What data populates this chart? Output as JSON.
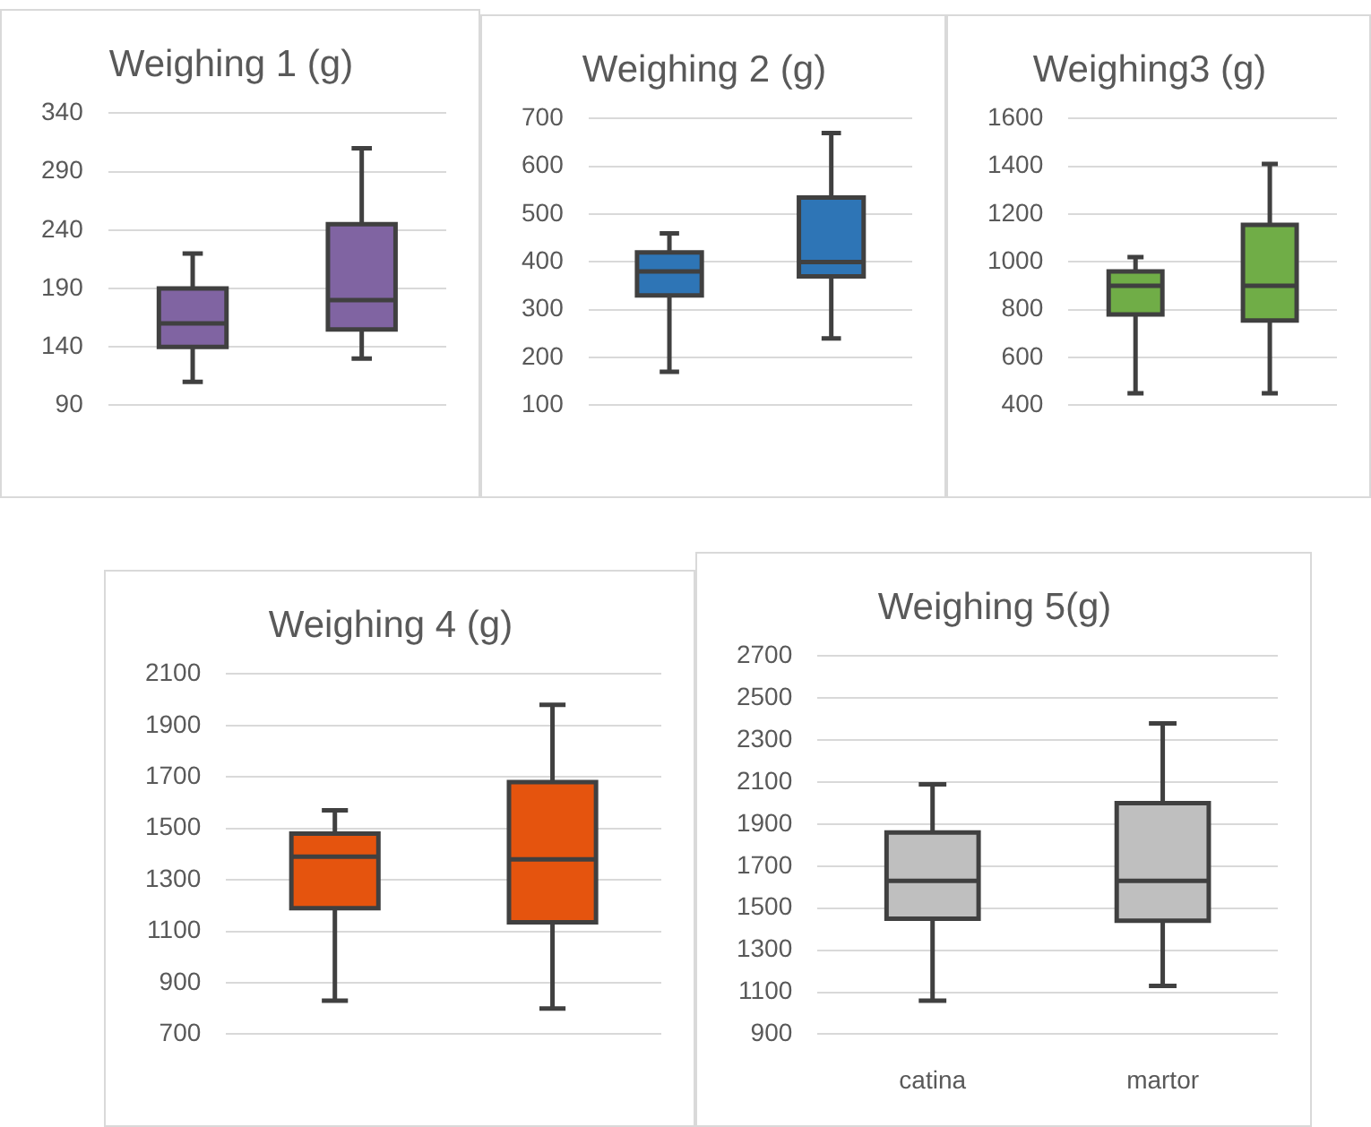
{
  "chart_data": [
    {
      "type": "box",
      "title": "Weighing 1 (g)",
      "categories": [
        null,
        null
      ],
      "series": [
        {
          "color": "#8064a2",
          "boxes": [
            {
              "low": 110,
              "q1": 140,
              "median": 160,
              "q3": 190,
              "high": 220
            },
            {
              "low": 130,
              "q1": 155,
              "median": 180,
              "q3": 245,
              "high": 310
            }
          ]
        }
      ],
      "ylim": [
        90,
        340
      ],
      "yticks": [
        90,
        140,
        190,
        240,
        290,
        340
      ],
      "grid": "y"
    },
    {
      "type": "box",
      "title": "Weighing 2 (g)",
      "categories": [
        null,
        null
      ],
      "series": [
        {
          "color": "#2e75b6",
          "boxes": [
            {
              "low": 170,
              "q1": 330,
              "median": 380,
              "q3": 420,
              "high": 460
            },
            {
              "low": 240,
              "q1": 370,
              "median": 400,
              "q3": 535,
              "high": 670
            }
          ]
        }
      ],
      "ylim": [
        100,
        700
      ],
      "yticks": [
        100,
        200,
        300,
        400,
        500,
        600,
        700
      ],
      "grid": "y"
    },
    {
      "type": "box",
      "title": "Weighing3 (g)",
      "categories": [
        null,
        null
      ],
      "series": [
        {
          "color": "#70ad47",
          "boxes": [
            {
              "low": 450,
              "q1": 780,
              "median": 900,
              "q3": 960,
              "high": 1020
            },
            {
              "low": 450,
              "q1": 755,
              "median": 900,
              "q3": 1155,
              "high": 1410
            }
          ]
        }
      ],
      "ylim": [
        400,
        1600
      ],
      "yticks": [
        400,
        600,
        800,
        1000,
        1200,
        1400,
        1600
      ],
      "grid": "y"
    },
    {
      "type": "box",
      "title": "Weighing 4 (g)",
      "categories": [
        null,
        null
      ],
      "series": [
        {
          "color": "#e5540e",
          "boxes": [
            {
              "low": 830,
              "q1": 1190,
              "median": 1390,
              "q3": 1480,
              "high": 1570
            },
            {
              "low": 800,
              "q1": 1135,
              "median": 1380,
              "q3": 1680,
              "high": 1980
            }
          ]
        }
      ],
      "ylim": [
        700,
        2100
      ],
      "yticks": [
        700,
        900,
        1100,
        1300,
        1500,
        1700,
        1900,
        2100
      ],
      "grid": "y"
    },
    {
      "type": "box",
      "title": "Weighing 5(g)",
      "categories": [
        "catina",
        "martor"
      ],
      "series": [
        {
          "color": "#bfbfbf",
          "boxes": [
            {
              "low": 1060,
              "q1": 1450,
              "median": 1630,
              "q3": 1860,
              "high": 2090
            },
            {
              "low": 1130,
              "q1": 1440,
              "median": 1630,
              "q3": 2000,
              "high": 2380
            }
          ]
        }
      ],
      "ylim": [
        900,
        2700
      ],
      "yticks": [
        900,
        1100,
        1300,
        1500,
        1700,
        1900,
        2100,
        2300,
        2500,
        2700
      ],
      "grid": "y"
    }
  ]
}
